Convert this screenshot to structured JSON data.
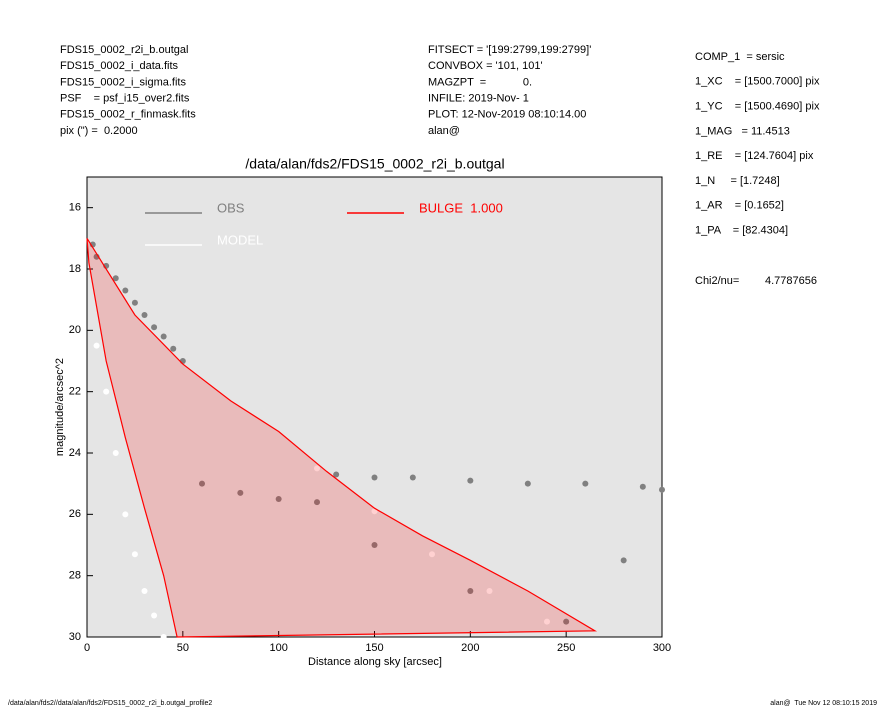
{
  "header_left": [
    "FDS15_0002_r2i_b.outgal",
    "FDS15_0002_i_data.fits",
    "FDS15_0002_i_sigma.fits",
    "PSF    = psf_i15_over2.fits",
    "FDS15_0002_r_finmask.fits",
    "pix (\") =  0.2000"
  ],
  "header_mid": [
    "FITSECT = '[199:2799,199:2799]'",
    "CONVBOX = '101, 101'",
    "MAGZPT  =            0.",
    "INFILE: 2019-Nov- 1",
    "PLOT: 12-Nov-2019 08:10:14.00",
    "alan@"
  ],
  "params": [
    "COMP_1  = sersic",
    "1_XC    = [1500.7000] pix",
    "1_YC    = [1500.4690] pix",
    "1_MAG   = 11.4513",
    "1_RE    = [124.7604] pix",
    "1_N     = [1.7248]",
    "1_AR    = [0.1652]",
    "1_PA    = [82.4304]"
  ],
  "chi": {
    "label": "Chi2/nu=",
    "value": "4.7787656"
  },
  "footer_left": "/data/alan/fds2//data/alan/fds2/FDS15_0002_r2i_b.outgal_profile2",
  "footer_right": "alan@  Tue Nov 12 08:10:15 2019",
  "chart_data": {
    "type": "scatter",
    "title": "/data/alan/fds2/FDS15_0002_r2i_b.outgal",
    "xlabel": "Distance along sky [arcsec]",
    "ylabel": "magnitude/arcsec^2",
    "xlim": [
      0,
      300
    ],
    "ylim": [
      30,
      15
    ],
    "xticks": [
      0,
      50,
      100,
      150,
      200,
      250,
      300
    ],
    "yticks": [
      16,
      18,
      20,
      22,
      24,
      26,
      28,
      30
    ],
    "series": [
      {
        "name": "OBS",
        "color": "#808080",
        "style": "points",
        "x": [
          3,
          5,
          10,
          15,
          20,
          25,
          30,
          35,
          40,
          45,
          50,
          60,
          80,
          100,
          120,
          130,
          150,
          170,
          200,
          230,
          260,
          290,
          300,
          150,
          200,
          250,
          280
        ],
        "values": [
          17.2,
          17.6,
          17.9,
          18.3,
          18.7,
          19.1,
          19.5,
          19.9,
          20.2,
          20.6,
          21.0,
          25.0,
          25.3,
          25.5,
          25.6,
          24.7,
          24.8,
          24.8,
          24.9,
          25.0,
          25.0,
          25.1,
          25.2,
          27.0,
          28.5,
          29.5,
          27.5
        ]
      },
      {
        "name": "MODEL",
        "color": "#ffffff",
        "style": "points",
        "x": [
          5,
          10,
          15,
          20,
          25,
          30,
          35,
          40,
          120,
          150,
          180,
          210,
          240
        ],
        "values": [
          20.5,
          22.0,
          24.0,
          26.0,
          27.3,
          28.5,
          29.3,
          30.0,
          24.5,
          25.9,
          27.3,
          28.5,
          29.5
        ]
      },
      {
        "name": "BULGE  1.000",
        "color": "#ff0000",
        "style": "line",
        "x": [
          0,
          25,
          50,
          75,
          100,
          125,
          150,
          175,
          200,
          230,
          265,
          47,
          40,
          30,
          20,
          10,
          1,
          0
        ],
        "values": [
          17.0,
          19.5,
          21.1,
          22.3,
          23.3,
          24.6,
          25.8,
          26.7,
          27.5,
          28.5,
          29.8,
          30.0,
          28.0,
          25.8,
          23.5,
          21.0,
          17.8,
          17.0
        ]
      }
    ]
  }
}
